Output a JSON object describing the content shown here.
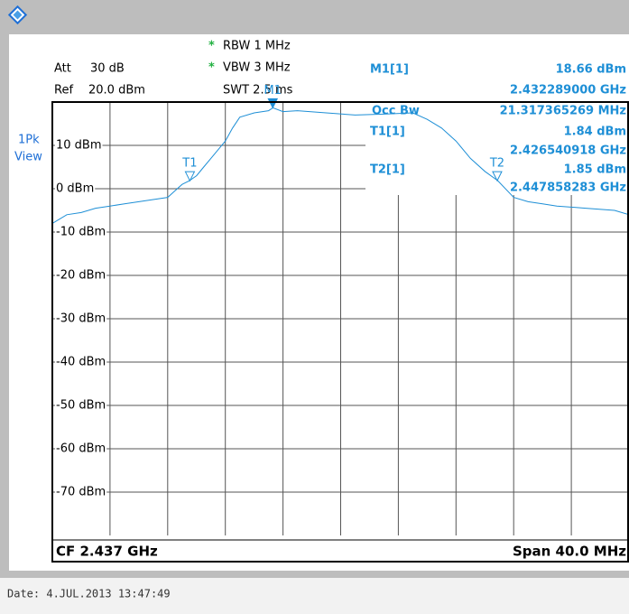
{
  "header": {
    "att_label": "Att",
    "att": "30 dB",
    "ref_label": "Ref",
    "ref": "20.0 dBm",
    "star": "*",
    "rbw": "RBW 1 MHz",
    "vbw": "VBW 3 MHz",
    "swt": "SWT 2.5 ms",
    "trace_mode": "1Pk",
    "trace_view": "View"
  },
  "marker_table": {
    "rows": [
      {
        "name": "M1[1]",
        "value": "18.66 dBm",
        "freq": "2.432289000 GHz"
      },
      {
        "name": "Occ Bw",
        "value": "21.317365269 MHz"
      },
      {
        "name": "T1[1]",
        "value": "1.84 dBm",
        "freq": "2.426540918 GHz"
      },
      {
        "name": "T2[1]",
        "value": "1.85 dBm",
        "freq": "2.447858283 GHz"
      }
    ]
  },
  "footer": {
    "cf": "CF 2.437 GHz",
    "span": "Span 40.0 MHz",
    "date": "Date: 4.JUL.2013  13:47:49"
  },
  "chart_data": {
    "type": "line",
    "ylim": [
      -80,
      20
    ],
    "xlim": [
      2.417,
      2.457
    ],
    "yticks": [
      {
        "value": 10,
        "label": "10 dBm"
      },
      {
        "value": 0,
        "label": "0 dBm"
      },
      {
        "value": -10,
        "label": "-10 dBm"
      },
      {
        "value": -20,
        "label": "-20 dBm"
      },
      {
        "value": -30,
        "label": "-30 dBm"
      },
      {
        "value": -40,
        "label": "-40 dBm"
      },
      {
        "value": -50,
        "label": "-50 dBm"
      },
      {
        "value": -60,
        "label": "-60 dBm"
      },
      {
        "value": -70,
        "label": "-70 dBm"
      }
    ],
    "grid": true,
    "series": [
      {
        "name": "1Pk",
        "color": "#1e8fd6",
        "x": [
          2.417,
          2.418,
          2.419,
          2.42,
          2.421,
          2.422,
          2.423,
          2.424,
          2.425,
          2.4255,
          2.426,
          2.4265,
          2.427,
          2.4275,
          2.428,
          2.4285,
          2.429,
          2.4295,
          2.43,
          2.431,
          2.432,
          2.4323,
          2.433,
          2.434,
          2.436,
          2.438,
          2.44,
          2.442,
          2.443,
          2.444,
          2.445,
          2.446,
          2.447,
          2.4479,
          2.449,
          2.45,
          2.451,
          2.452,
          2.454,
          2.456,
          2.457
        ],
        "values": [
          -8,
          -6,
          -5.5,
          -4.5,
          -4,
          -3.5,
          -3,
          -2.5,
          -2,
          -0.5,
          1,
          1.84,
          3,
          5,
          7,
          9,
          11,
          14,
          16.5,
          17.5,
          18,
          18.66,
          17.8,
          18,
          17.5,
          17,
          17.2,
          17.5,
          16,
          14,
          11,
          7,
          4,
          1.85,
          -2,
          -3,
          -3.5,
          -4,
          -4.5,
          -5,
          -6
        ]
      }
    ],
    "markers": [
      {
        "tag": "M1",
        "x": 2.432289,
        "y": 18.66
      },
      {
        "tag": "T1",
        "x": 2.426540918,
        "y": 1.84
      },
      {
        "tag": "T2",
        "x": 2.447858283,
        "y": 1.85
      }
    ]
  }
}
